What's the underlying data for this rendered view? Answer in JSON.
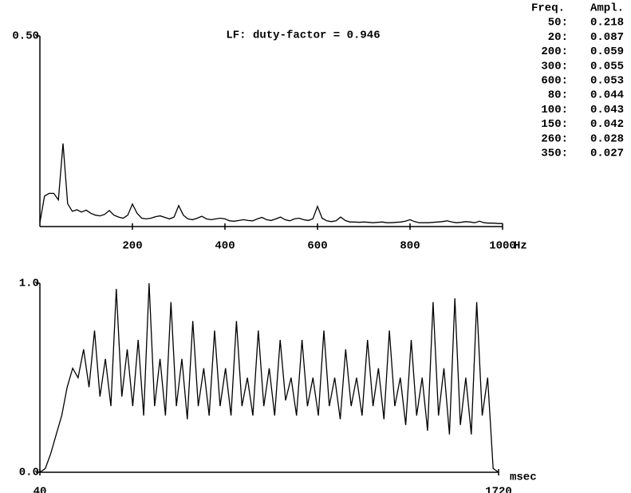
{
  "chart_data": [
    {
      "type": "line",
      "title": "LF: duty-factor = 0.946",
      "xlabel": "Hz",
      "x": [
        0,
        10,
        20,
        30,
        40,
        50,
        60,
        70,
        80,
        90,
        100,
        110,
        120,
        130,
        140,
        150,
        160,
        170,
        180,
        190,
        200,
        210,
        220,
        230,
        240,
        250,
        260,
        270,
        280,
        290,
        300,
        310,
        320,
        330,
        340,
        350,
        360,
        370,
        380,
        390,
        400,
        410,
        420,
        430,
        440,
        450,
        460,
        470,
        480,
        490,
        500,
        510,
        520,
        530,
        540,
        550,
        560,
        570,
        580,
        590,
        600,
        610,
        620,
        630,
        640,
        650,
        660,
        670,
        680,
        690,
        700,
        710,
        720,
        730,
        740,
        750,
        760,
        770,
        780,
        790,
        800,
        810,
        820,
        830,
        840,
        850,
        860,
        870,
        880,
        890,
        900,
        910,
        920,
        930,
        940,
        950,
        960,
        970,
        980,
        990,
        1000
      ],
      "values": [
        0.01,
        0.08,
        0.087,
        0.087,
        0.07,
        0.218,
        0.06,
        0.04,
        0.044,
        0.038,
        0.043,
        0.035,
        0.03,
        0.028,
        0.032,
        0.042,
        0.03,
        0.025,
        0.022,
        0.03,
        0.059,
        0.035,
        0.022,
        0.02,
        0.022,
        0.026,
        0.028,
        0.024,
        0.02,
        0.025,
        0.055,
        0.03,
        0.02,
        0.018,
        0.022,
        0.027,
        0.02,
        0.018,
        0.02,
        0.022,
        0.02,
        0.015,
        0.014,
        0.016,
        0.018,
        0.016,
        0.015,
        0.02,
        0.024,
        0.018,
        0.016,
        0.02,
        0.025,
        0.018,
        0.015,
        0.02,
        0.022,
        0.018,
        0.016,
        0.02,
        0.053,
        0.022,
        0.015,
        0.013,
        0.015,
        0.025,
        0.016,
        0.012,
        0.012,
        0.011,
        0.012,
        0.011,
        0.01,
        0.011,
        0.012,
        0.01,
        0.01,
        0.011,
        0.012,
        0.014,
        0.018,
        0.013,
        0.01,
        0.01,
        0.01,
        0.011,
        0.012,
        0.013,
        0.015,
        0.012,
        0.01,
        0.011,
        0.013,
        0.012,
        0.01,
        0.014,
        0.01,
        0.009,
        0.009,
        0.008,
        0.008
      ],
      "color": "#000000",
      "xlim": [
        0,
        1000
      ],
      "xticks": [
        200,
        400,
        600,
        800,
        1000
      ],
      "ylim": [
        0,
        0.5
      ],
      "yticks": [
        {
          "value": 0.5,
          "label": "0.50"
        }
      ]
    },
    {
      "type": "line",
      "xlabel": "msec",
      "x": [
        40,
        60,
        80,
        100,
        120,
        140,
        160,
        180,
        200,
        220,
        240,
        260,
        280,
        300,
        320,
        340,
        360,
        380,
        400,
        420,
        440,
        460,
        480,
        500,
        520,
        540,
        560,
        580,
        600,
        620,
        640,
        660,
        680,
        700,
        720,
        740,
        760,
        780,
        800,
        820,
        840,
        860,
        880,
        900,
        920,
        940,
        960,
        980,
        1000,
        1020,
        1040,
        1060,
        1080,
        1100,
        1120,
        1140,
        1160,
        1180,
        1200,
        1220,
        1240,
        1260,
        1280,
        1300,
        1320,
        1340,
        1360,
        1380,
        1400,
        1420,
        1440,
        1460,
        1480,
        1500,
        1520,
        1540,
        1560,
        1580,
        1600,
        1620,
        1640,
        1660,
        1680,
        1700,
        1720
      ],
      "values": [
        0.0,
        0.02,
        0.1,
        0.2,
        0.3,
        0.45,
        0.55,
        0.5,
        0.65,
        0.45,
        0.75,
        0.4,
        0.6,
        0.35,
        0.97,
        0.4,
        0.65,
        0.35,
        0.7,
        0.3,
        1.0,
        0.35,
        0.6,
        0.3,
        0.9,
        0.35,
        0.6,
        0.28,
        0.8,
        0.35,
        0.55,
        0.3,
        0.75,
        0.35,
        0.55,
        0.3,
        0.8,
        0.35,
        0.5,
        0.3,
        0.75,
        0.35,
        0.55,
        0.3,
        0.7,
        0.38,
        0.5,
        0.3,
        0.7,
        0.35,
        0.5,
        0.3,
        0.75,
        0.35,
        0.5,
        0.28,
        0.65,
        0.35,
        0.5,
        0.3,
        0.7,
        0.35,
        0.55,
        0.28,
        0.75,
        0.35,
        0.5,
        0.25,
        0.7,
        0.3,
        0.5,
        0.22,
        0.9,
        0.3,
        0.55,
        0.2,
        0.92,
        0.25,
        0.5,
        0.2,
        0.9,
        0.3,
        0.5,
        0.02,
        0.0
      ],
      "color": "#000000",
      "xlim": [
        40,
        1720
      ],
      "xticks": [
        40,
        1720
      ],
      "ylim": [
        0,
        1
      ],
      "yticks": [
        {
          "value": 0,
          "label": "0.0"
        },
        {
          "value": 1,
          "label": "1.0"
        }
      ]
    }
  ],
  "table": {
    "columns": [
      "Freq.",
      "Ampl."
    ],
    "rows": [
      [
        "50:",
        "0.218"
      ],
      [
        "20:",
        "0.087"
      ],
      [
        "200:",
        "0.059"
      ],
      [
        "300:",
        "0.055"
      ],
      [
        "600:",
        "0.053"
      ],
      [
        "80:",
        "0.044"
      ],
      [
        "100:",
        "0.043"
      ],
      [
        "150:",
        "0.042"
      ],
      [
        "260:",
        "0.028"
      ],
      [
        "350:",
        "0.027"
      ]
    ]
  }
}
